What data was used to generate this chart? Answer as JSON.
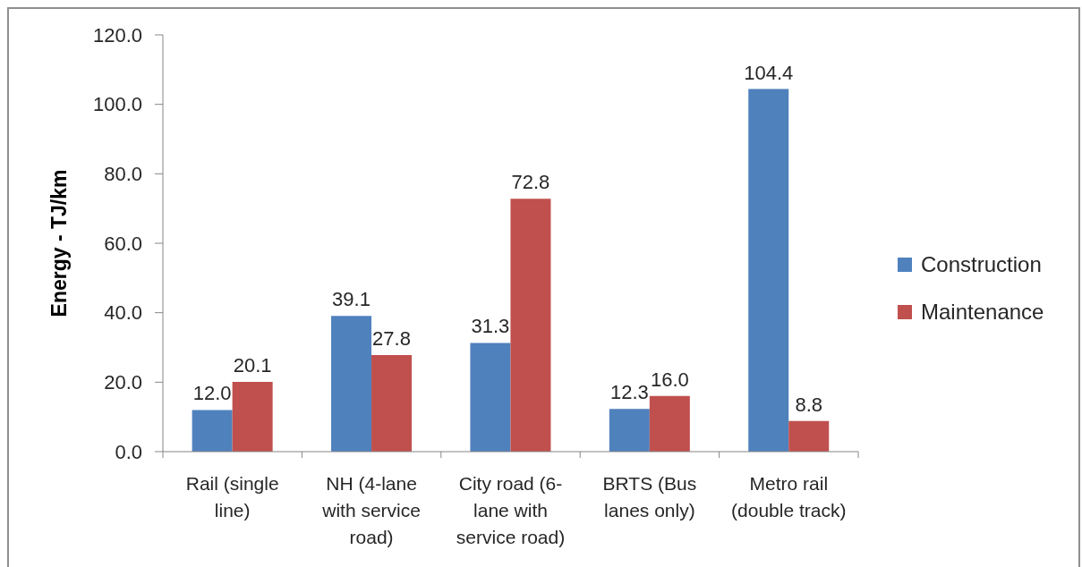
{
  "chart_data": {
    "type": "bar",
    "ylabel": "Energy - TJ/km",
    "categories": [
      "Rail (single line)",
      "NH (4-lane with service road)",
      "City road (6-lane with service road)",
      "BRTS (Bus lanes only)",
      "Metro rail (double track)"
    ],
    "series": [
      {
        "name": "Construction",
        "color": "#4f81bd",
        "values": [
          12.0,
          39.1,
          31.3,
          12.3,
          104.4
        ],
        "value_labels": [
          "12.0",
          "39.1",
          "31.3",
          "12.3",
          "104.4"
        ]
      },
      {
        "name": "Maintenance",
        "color": "#c0504d",
        "values": [
          20.1,
          27.8,
          72.8,
          16.0,
          8.8
        ],
        "value_labels": [
          "20.1",
          "27.8",
          "72.8",
          "16.0",
          "8.8"
        ]
      }
    ],
    "ylim": [
      0,
      120
    ],
    "yticks": [
      {
        "value": 0,
        "label": "0.0"
      },
      {
        "value": 20,
        "label": "20.0"
      },
      {
        "value": 40,
        "label": "40.0"
      },
      {
        "value": 60,
        "label": "60.0"
      },
      {
        "value": 80,
        "label": "80.0"
      },
      {
        "value": 100,
        "label": "100.0"
      },
      {
        "value": 120,
        "label": "120.0"
      }
    ],
    "legend": "right"
  }
}
